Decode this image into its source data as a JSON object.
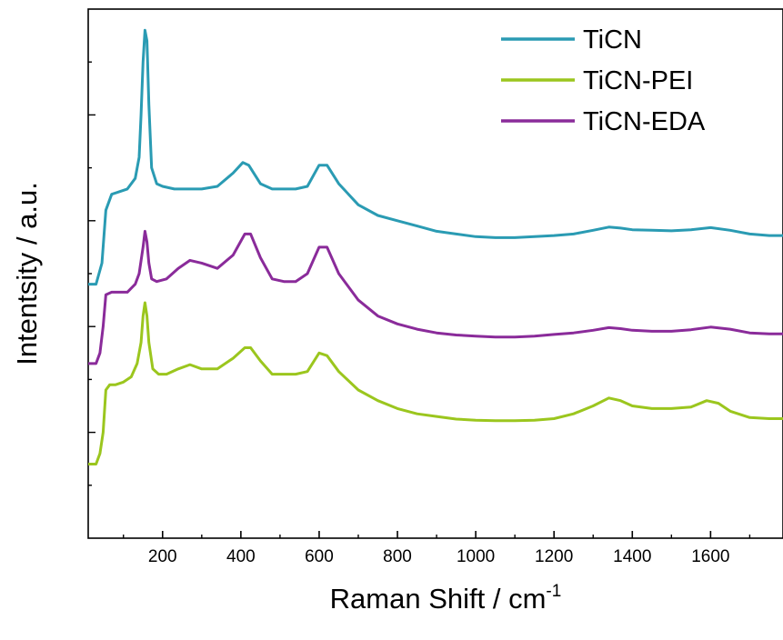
{
  "chart_data": {
    "type": "line",
    "title": "",
    "xlabel": "Raman Shift / cm",
    "xlabel_superscript": "-1",
    "ylabel": "Intentsity / a.u.",
    "xlim": [
      10,
      1785
    ],
    "ylim": [
      0,
      100
    ],
    "x_ticks": [
      200,
      400,
      600,
      800,
      1000,
      1200,
      1400,
      1600
    ],
    "y_tick_labels_shown": false,
    "grid": false,
    "legend_position": "top-right",
    "series": [
      {
        "name": "TiCN",
        "color": "#2a9bb3",
        "points": [
          [
            10,
            48
          ],
          [
            30,
            48
          ],
          [
            45,
            52
          ],
          [
            55,
            62
          ],
          [
            70,
            65
          ],
          [
            90,
            65.5
          ],
          [
            110,
            66
          ],
          [
            130,
            68
          ],
          [
            140,
            72
          ],
          [
            145,
            80
          ],
          [
            150,
            90
          ],
          [
            155,
            96
          ],
          [
            160,
            94
          ],
          [
            165,
            82
          ],
          [
            172,
            70
          ],
          [
            185,
            67
          ],
          [
            200,
            66.5
          ],
          [
            230,
            66
          ],
          [
            260,
            66
          ],
          [
            300,
            66
          ],
          [
            340,
            66.5
          ],
          [
            380,
            69
          ],
          [
            405,
            71
          ],
          [
            420,
            70.5
          ],
          [
            450,
            67
          ],
          [
            480,
            66
          ],
          [
            510,
            66
          ],
          [
            540,
            66
          ],
          [
            570,
            66.5
          ],
          [
            600,
            70.5
          ],
          [
            620,
            70.5
          ],
          [
            650,
            67
          ],
          [
            700,
            63
          ],
          [
            750,
            61
          ],
          [
            800,
            60
          ],
          [
            850,
            59
          ],
          [
            900,
            58
          ],
          [
            950,
            57.5
          ],
          [
            1000,
            57
          ],
          [
            1050,
            56.8
          ],
          [
            1100,
            56.8
          ],
          [
            1150,
            57
          ],
          [
            1200,
            57.2
          ],
          [
            1250,
            57.5
          ],
          [
            1300,
            58.2
          ],
          [
            1340,
            58.8
          ],
          [
            1370,
            58.6
          ],
          [
            1400,
            58.3
          ],
          [
            1450,
            58.2
          ],
          [
            1500,
            58.1
          ],
          [
            1550,
            58.3
          ],
          [
            1600,
            58.7
          ],
          [
            1650,
            58.2
          ],
          [
            1700,
            57.5
          ],
          [
            1750,
            57.2
          ],
          [
            1785,
            57.2
          ]
        ]
      },
      {
        "name": "TiCN-PEI",
        "color": "#9bc61e",
        "points": [
          [
            10,
            14
          ],
          [
            30,
            14
          ],
          [
            40,
            16
          ],
          [
            48,
            20
          ],
          [
            55,
            28
          ],
          [
            65,
            29
          ],
          [
            80,
            29
          ],
          [
            100,
            29.5
          ],
          [
            120,
            30.5
          ],
          [
            135,
            33
          ],
          [
            145,
            37
          ],
          [
            150,
            42
          ],
          [
            155,
            44.5
          ],
          [
            160,
            42
          ],
          [
            165,
            37
          ],
          [
            175,
            32
          ],
          [
            190,
            31
          ],
          [
            210,
            31
          ],
          [
            240,
            32
          ],
          [
            270,
            32.8
          ],
          [
            300,
            32
          ],
          [
            340,
            32
          ],
          [
            380,
            34
          ],
          [
            410,
            36
          ],
          [
            425,
            36
          ],
          [
            450,
            33.5
          ],
          [
            480,
            31
          ],
          [
            510,
            31
          ],
          [
            540,
            31
          ],
          [
            570,
            31.5
          ],
          [
            600,
            35
          ],
          [
            620,
            34.5
          ],
          [
            650,
            31.5
          ],
          [
            700,
            28
          ],
          [
            750,
            26
          ],
          [
            800,
            24.5
          ],
          [
            850,
            23.5
          ],
          [
            900,
            23
          ],
          [
            950,
            22.5
          ],
          [
            1000,
            22.3
          ],
          [
            1050,
            22.2
          ],
          [
            1100,
            22.2
          ],
          [
            1150,
            22.3
          ],
          [
            1200,
            22.6
          ],
          [
            1250,
            23.5
          ],
          [
            1300,
            25
          ],
          [
            1340,
            26.5
          ],
          [
            1370,
            26
          ],
          [
            1400,
            25
          ],
          [
            1450,
            24.5
          ],
          [
            1500,
            24.5
          ],
          [
            1550,
            24.8
          ],
          [
            1590,
            26
          ],
          [
            1620,
            25.5
          ],
          [
            1650,
            24
          ],
          [
            1700,
            22.8
          ],
          [
            1750,
            22.6
          ],
          [
            1785,
            22.6
          ]
        ]
      },
      {
        "name": "TiCN-EDA",
        "color": "#8a2b9a",
        "points": [
          [
            10,
            33
          ],
          [
            30,
            33
          ],
          [
            40,
            35
          ],
          [
            48,
            40
          ],
          [
            55,
            46
          ],
          [
            70,
            46.5
          ],
          [
            90,
            46.5
          ],
          [
            110,
            46.5
          ],
          [
            130,
            48
          ],
          [
            140,
            50
          ],
          [
            150,
            55
          ],
          [
            155,
            58
          ],
          [
            160,
            56
          ],
          [
            165,
            52
          ],
          [
            172,
            49
          ],
          [
            185,
            48.5
          ],
          [
            210,
            49
          ],
          [
            240,
            51
          ],
          [
            270,
            52.5
          ],
          [
            300,
            52
          ],
          [
            340,
            51
          ],
          [
            380,
            53.5
          ],
          [
            410,
            57.5
          ],
          [
            425,
            57.5
          ],
          [
            450,
            53
          ],
          [
            480,
            49
          ],
          [
            510,
            48.5
          ],
          [
            540,
            48.5
          ],
          [
            570,
            50
          ],
          [
            600,
            55
          ],
          [
            620,
            55
          ],
          [
            650,
            50
          ],
          [
            700,
            45
          ],
          [
            750,
            42
          ],
          [
            800,
            40.5
          ],
          [
            850,
            39.5
          ],
          [
            900,
            38.8
          ],
          [
            950,
            38.4
          ],
          [
            1000,
            38.2
          ],
          [
            1050,
            38
          ],
          [
            1100,
            38
          ],
          [
            1150,
            38.2
          ],
          [
            1200,
            38.5
          ],
          [
            1250,
            38.8
          ],
          [
            1300,
            39.3
          ],
          [
            1340,
            39.8
          ],
          [
            1370,
            39.6
          ],
          [
            1400,
            39.3
          ],
          [
            1450,
            39.1
          ],
          [
            1500,
            39.1
          ],
          [
            1550,
            39.4
          ],
          [
            1600,
            39.9
          ],
          [
            1650,
            39.5
          ],
          [
            1700,
            38.8
          ],
          [
            1750,
            38.6
          ],
          [
            1785,
            38.6
          ]
        ]
      }
    ]
  }
}
